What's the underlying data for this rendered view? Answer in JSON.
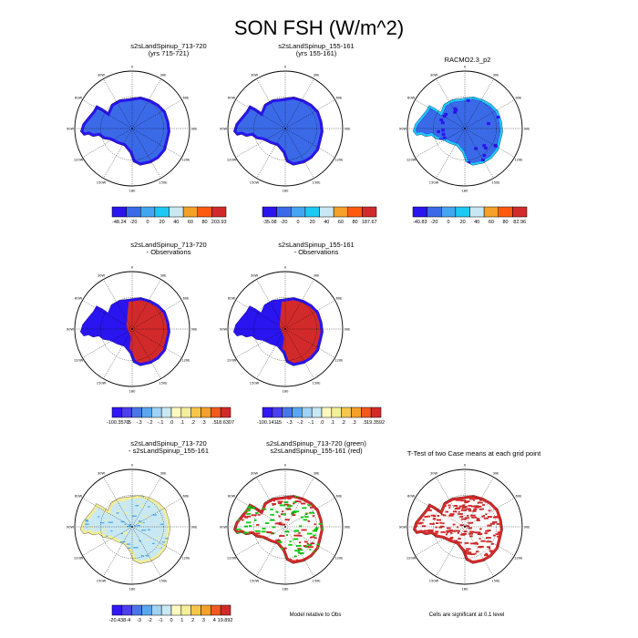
{
  "title": "SON FSH (W/m^2)",
  "lon_labels": {
    "0": "0",
    "30E": "30E",
    "60E": "60E",
    "90E": "90E",
    "120E": "120E",
    "150E": "150E",
    "180": "180",
    "150W": "150W",
    "120W": "120W",
    "90W": "90W",
    "60W": "60W",
    "30W": "30W"
  },
  "colors": {
    "deep_blue": "#2a14f0",
    "blue": "#3b6ae8",
    "light_blue": "#44a6f0",
    "cyan": "#1ec8f5",
    "pale": "#c8e8f4",
    "red": "#d22a2a",
    "green": "#11cc11",
    "yellow": "#f4ee9a",
    "orange": "#f5a028"
  },
  "panels": [
    {
      "id": "p1",
      "title_line1": "s2sLandSpinup_713-720",
      "title_line2": "(yrs 715-721)",
      "fill": "blue_model"
    },
    {
      "id": "p2",
      "title_line1": "s2sLandSpinup_155-161",
      "title_line2": "(yrs 155-161)",
      "fill": "blue_model"
    },
    {
      "id": "p3",
      "title_line1": "RACMO2.3_p2",
      "title_line2": "",
      "fill": "blue_obs"
    },
    {
      "id": "p4",
      "title_line1": "s2sLandSpinup_713-720",
      "title_line2": "- Observations",
      "fill": "red_diff"
    },
    {
      "id": "p5",
      "title_line1": "s2sLandSpinup_155-161",
      "title_line2": "- Observations",
      "fill": "red_diff"
    },
    {
      "id": "p7",
      "title_line1": "s2sLandSpinup_713-720",
      "title_line2": "- s2sLandSpinup_155-161",
      "fill": "pale_diff"
    },
    {
      "id": "p8",
      "title_line1": "s2sLandSpinup_713-720 (green)",
      "title_line2": "s2sLandSpinup_155-161 (red)",
      "fill": "green_red"
    },
    {
      "id": "p9",
      "title_line1": "T-Test of two Case means at each grid point",
      "title_line2": "",
      "fill": "ttest"
    }
  ],
  "colorbars": [
    {
      "id": "cb1",
      "labels": [
        "-48.24",
        "-20",
        "0",
        "20",
        "40",
        "60",
        "80",
        "203.93"
      ]
    },
    {
      "id": "cb2",
      "labels": [
        "-35.08",
        "-20",
        "0",
        "20",
        "40",
        "60",
        "80",
        "187.67"
      ]
    },
    {
      "id": "cb3",
      "labels": [
        "-40.83",
        "-20",
        "0",
        "20",
        "40",
        "60",
        "80",
        "82.96"
      ]
    },
    {
      "id": "cb4",
      "labels": [
        "-100.3579",
        "-.5",
        "-.3",
        "-.2",
        "-.1",
        ".0",
        ".1",
        ".2",
        ".3",
        ".5",
        "18.6307"
      ]
    },
    {
      "id": "cb5",
      "labels": [
        "-100.1411",
        "-.5",
        "-.3",
        "-.2",
        "-.1",
        ".0",
        ".1",
        ".2",
        ".3",
        ".5",
        "19.3592"
      ]
    },
    {
      "id": "cb7",
      "labels": [
        "-20.438",
        "-4",
        "-3",
        "-2",
        "-1",
        "0",
        "1",
        "2",
        "3",
        "4",
        "19.892"
      ]
    }
  ],
  "notes": {
    "model_relative": "Model relative to Obs",
    "significance": "Cells are significant at 0.1 level"
  }
}
